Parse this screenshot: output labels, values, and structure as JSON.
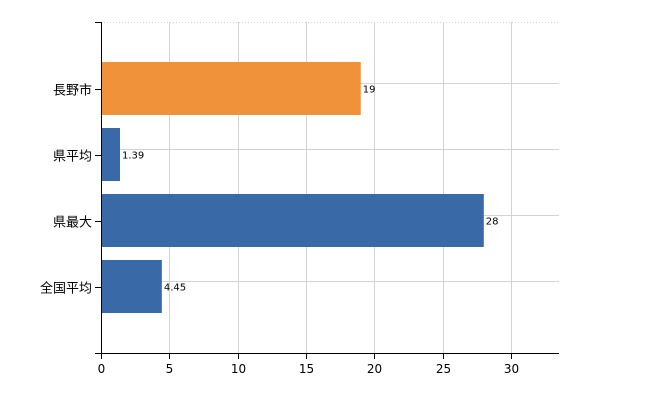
{
  "chart_data": {
    "type": "bar",
    "orientation": "horizontal",
    "categories": [
      "長野市",
      "県平均",
      "県最大",
      "全国平均"
    ],
    "values": [
      19,
      1.39,
      28,
      4.45
    ],
    "value_labels": [
      "19",
      "1.39",
      "28",
      "4.45"
    ],
    "xlim": [
      0,
      33.5
    ],
    "x_ticks": [
      0,
      5,
      10,
      15,
      20,
      25,
      30
    ],
    "x_tick_labels": [
      "0",
      "5",
      "10",
      "15",
      "20",
      "25",
      "30"
    ],
    "grid": true,
    "colors": {
      "highlight": "#F0923A",
      "default": "#3A69A8",
      "grid": "#D3D3D3",
      "axis": "#000000"
    },
    "highlight_index": 0
  }
}
